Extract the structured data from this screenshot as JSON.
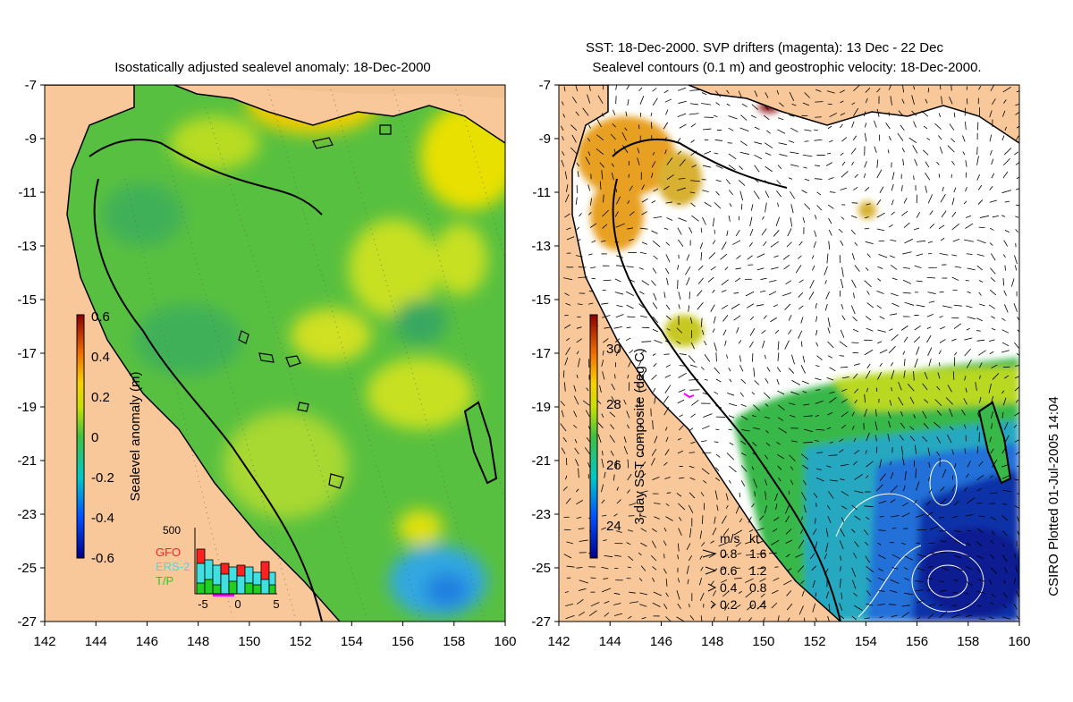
{
  "left": {
    "title": "Isostatically adjusted sealevel anomaly: 18-Dec-2000",
    "colorbar_label": "Sealevel anomaly (m)",
    "colorbar_ticks": [
      "0.6",
      "0.4",
      "0.2",
      "0",
      "-0.2",
      "-0.4",
      "-0.6"
    ],
    "inset": {
      "max_label": "500",
      "legend": [
        {
          "label": "GFO",
          "color": "#ff2020"
        },
        {
          "label": "ERS-2",
          "color": "#40e0e0"
        },
        {
          "label": "T/P",
          "color": "#20d020"
        }
      ],
      "x_ticks": [
        "-5",
        "0",
        "5"
      ]
    }
  },
  "right": {
    "title_line1": "SST: 18-Dec-2000. SVP drifters (magenta): 13 Dec - 22 Dec",
    "title_line2": "Sealevel contours (0.1 m) and geostrophic velocity: 18-Dec-2000.",
    "colorbar_label": "3-day SST composite (deg C)",
    "colorbar_ticks": [
      "30",
      "28",
      "26",
      "24"
    ],
    "speed_legend": {
      "header_ms": "m/s",
      "header_kt": "kt",
      "rows": [
        {
          "ms": "0.8",
          "kt": "1.6"
        },
        {
          "ms": "0.6",
          "kt": "1.2"
        },
        {
          "ms": "0.4",
          "kt": "0.8"
        },
        {
          "ms": "0.2",
          "kt": "0.4"
        }
      ]
    }
  },
  "lat_ticks": [
    "-7",
    "-9",
    "-11",
    "-13",
    "-15",
    "-17",
    "-19",
    "-21",
    "-23",
    "-25",
    "-27"
  ],
  "lon_ticks": [
    "142",
    "144",
    "146",
    "148",
    "150",
    "152",
    "154",
    "156",
    "158",
    "160"
  ],
  "credit": "CSIRO Plotted 01-Jul-2005 14:04",
  "colors": {
    "land": "#f8c89a",
    "sea_mid": "#58c040",
    "sst_warm": "#e8a020",
    "sst_cool": "#2060d0"
  }
}
